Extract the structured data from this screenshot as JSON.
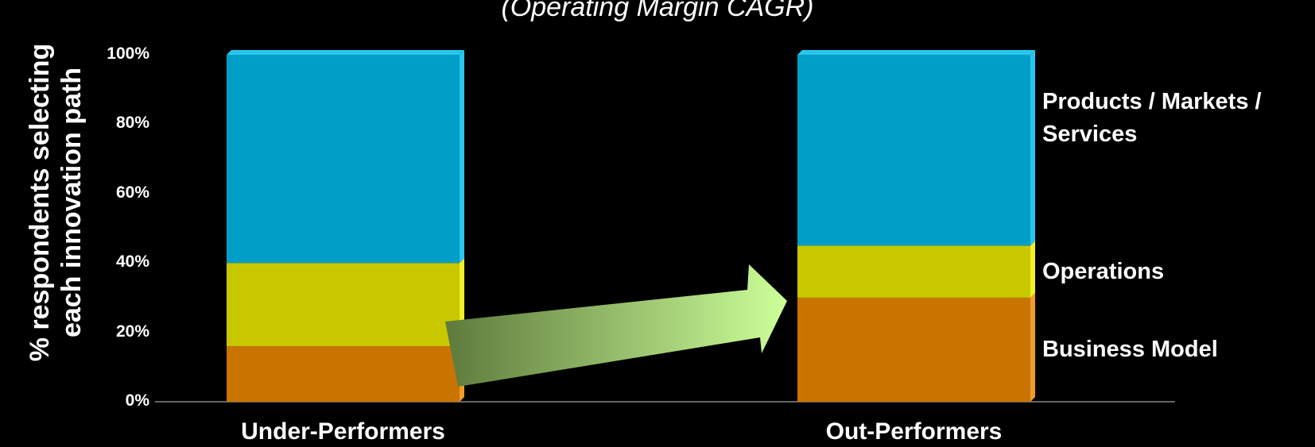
{
  "chart_data": {
    "type": "bar",
    "stacked": true,
    "subtitle": "(Operating Margin CAGR)",
    "ylabel": "% respondents selecting each innovation path",
    "ylim": [
      0,
      100
    ],
    "yticks": [
      "0%",
      "20%",
      "40%",
      "60%",
      "80%",
      "100%"
    ],
    "categories": [
      "Under-Performers",
      "Out-Performers"
    ],
    "series": [
      {
        "name": "Business Model",
        "color": "#C97400",
        "values": [
          16,
          30
        ]
      },
      {
        "name": "Operations",
        "color": "#C8C800",
        "values": [
          24,
          15
        ]
      },
      {
        "name": "Products / Markets / Services",
        "color": "#009EC6",
        "values": [
          60,
          55
        ]
      }
    ],
    "annotations": [
      {
        "type": "arrow",
        "from": "Under-Performers",
        "to": "Out-Performers",
        "fill": "gradient-green"
      }
    ]
  }
}
